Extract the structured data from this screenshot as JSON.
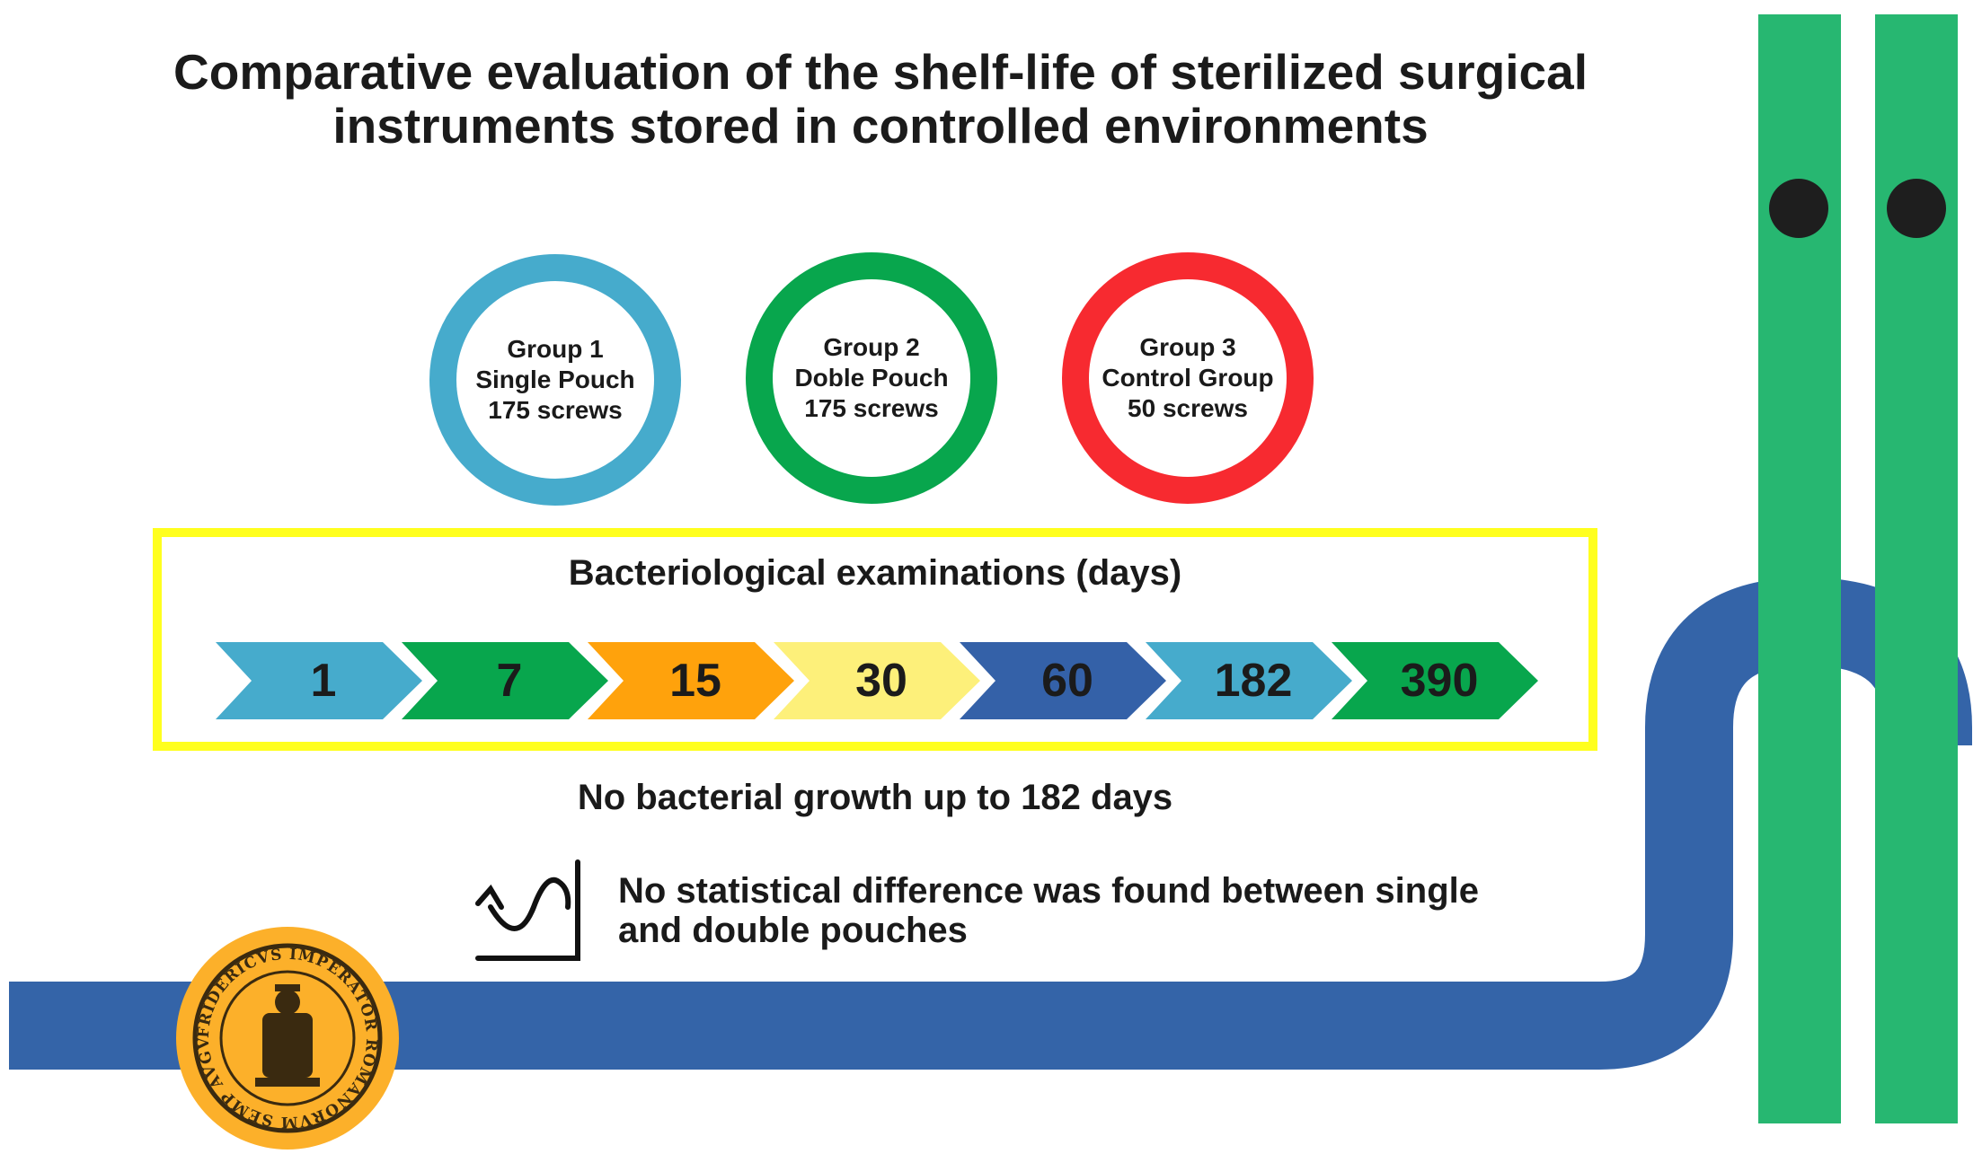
{
  "title": {
    "line1": "Comparative evaluation of the shelf-life of sterilized surgical",
    "line2": "instruments stored in controlled environments"
  },
  "groups": [
    {
      "line1": "Group 1",
      "line2": "Single Pouch",
      "line3": "175 screws",
      "color": "#46abcc"
    },
    {
      "line1": "Group 2",
      "line2": "Doble Pouch",
      "line3": "175 screws",
      "color": "#08a64d"
    },
    {
      "line1": "Group 3",
      "line2": "Control Group",
      "line3": "50 screws",
      "color": "#f72a30"
    }
  ],
  "exams": {
    "title": "Bacteriological examinations (days)",
    "box_color": "#ffff1e",
    "days": [
      {
        "label": "1",
        "color": "#46abcc"
      },
      {
        "label": "7",
        "color": "#08a64d"
      },
      {
        "label": "15",
        "color": "#ffa20c"
      },
      {
        "label": "30",
        "color": "#fdf07a"
      },
      {
        "label": "60",
        "color": "#3461a8"
      },
      {
        "label": "182",
        "color": "#46abcc"
      },
      {
        "label": "390",
        "color": "#08a64d"
      }
    ]
  },
  "findings": {
    "growth": "No bacterial growth up to 182 days",
    "stat_line1": "No statistical difference was found between single",
    "stat_line2": "and double pouches",
    "stat_icon": "statistics-curve-icon"
  },
  "decor": {
    "road_color": "#3464a8",
    "bars_color": "#27b771",
    "seal_color": "#fcb02a",
    "seal_text": "FRIDERICVS IMPERATOR ROMANORVM SEMP AVGVSTVS"
  }
}
